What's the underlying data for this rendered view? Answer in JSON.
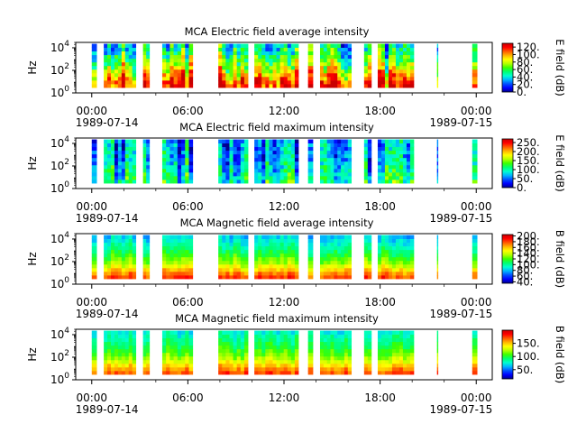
{
  "figure": {
    "colormap": [
      "#00008b",
      "#0000ff",
      "#0050ff",
      "#00b4ff",
      "#00ffd0",
      "#00ff6e",
      "#3cff00",
      "#b4ff00",
      "#ffff00",
      "#ffb400",
      "#ff5a00",
      "#ff0000",
      "#c80000"
    ]
  },
  "time_axis": {
    "start": "1989-07-14 00:00",
    "end": "1989-07-15 00:00",
    "tick_labels": [
      "00:00",
      "06:00",
      "12:00",
      "18:00",
      "00:00"
    ],
    "tick_hours": [
      0,
      6,
      12,
      18,
      24
    ],
    "minor_tick_hours": [
      2,
      4,
      8,
      10,
      14,
      16,
      20,
      22
    ],
    "date_labels": [
      "1989-07-14",
      "1989-07-15"
    ],
    "xlim_hours": [
      -1,
      25
    ]
  },
  "frequency_axis": {
    "label": "Hz",
    "scale": "log",
    "ylim": [
      1,
      30000
    ],
    "ticks": [
      {
        "value": 1,
        "base": "10",
        "exp": "0"
      },
      {
        "value": 100,
        "base": "10",
        "exp": "2"
      },
      {
        "value": 10000,
        "base": "10",
        "exp": "4"
      }
    ]
  },
  "chart_data": [
    {
      "type": "heatmap",
      "title": "MCA  Electric field average intensity",
      "ylabel": "Hz",
      "colorbar": {
        "label": "E field (dB)",
        "range": [
          0,
          130
        ],
        "ticks": [
          "0.",
          "20.",
          "40.",
          "60.",
          "80.",
          "100.",
          "120."
        ],
        "tick_values": [
          0,
          20,
          40,
          60,
          80,
          100,
          120
        ]
      },
      "x_unit": "hours since 1989-07-14 00:00",
      "data_segments_hours": [
        [
          0.0,
          0.3
        ],
        [
          0.75,
          2.75
        ],
        [
          3.2,
          3.6
        ],
        [
          4.4,
          6.3
        ],
        [
          7.9,
          9.75
        ],
        [
          10.15,
          12.9
        ],
        [
          13.5,
          13.8
        ],
        [
          14.25,
          16.2
        ],
        [
          17.0,
          17.45
        ],
        [
          17.85,
          20.1
        ],
        [
          21.55,
          21.6
        ],
        [
          23.75,
          24.05
        ]
      ],
      "level_profile": [
        0.88,
        0.84,
        0.78,
        0.71,
        0.64,
        0.57,
        0.51,
        0.46,
        0.41,
        0.36,
        0.33,
        0.3
      ],
      "variability": 0.45,
      "seed": 11
    },
    {
      "type": "heatmap",
      "title": "MCA  Electric field maximum intensity",
      "ylabel": "Hz",
      "colorbar": {
        "label": "E field (dB)",
        "range": [
          0,
          270
        ],
        "ticks": [
          "0.",
          "50.",
          "100.",
          "150.",
          "200.",
          "250."
        ],
        "tick_values": [
          0,
          50,
          100,
          150,
          200,
          250
        ]
      },
      "x_unit": "hours since 1989-07-14 00:00",
      "data_segments_hours": [
        [
          0.0,
          0.3
        ],
        [
          0.75,
          2.75
        ],
        [
          3.2,
          3.6
        ],
        [
          4.4,
          6.3
        ],
        [
          7.9,
          9.75
        ],
        [
          10.15,
          12.9
        ],
        [
          13.5,
          13.8
        ],
        [
          14.25,
          16.2
        ],
        [
          17.0,
          17.45
        ],
        [
          17.85,
          20.1
        ],
        [
          21.55,
          21.6
        ],
        [
          23.75,
          24.05
        ]
      ],
      "level_profile": [
        0.38,
        0.36,
        0.34,
        0.32,
        0.3,
        0.28,
        0.26,
        0.25,
        0.24,
        0.23,
        0.22,
        0.22
      ],
      "variability": 0.35,
      "seed": 23
    },
    {
      "type": "heatmap",
      "title": "MCA  Magnetic field average intensity",
      "ylabel": "Hz",
      "colorbar": {
        "label": "B field (dB)",
        "range": [
          35,
          205
        ],
        "ticks": [
          "40.",
          "60.",
          "80.",
          "100.",
          "120.",
          "140.",
          "160.",
          "180.",
          "200."
        ],
        "tick_values": [
          40,
          60,
          80,
          100,
          120,
          140,
          160,
          180,
          200
        ]
      },
      "x_unit": "hours since 1989-07-14 00:00",
      "data_segments_hours": [
        [
          0.0,
          0.3
        ],
        [
          0.75,
          2.75
        ],
        [
          3.2,
          3.6
        ],
        [
          4.4,
          6.3
        ],
        [
          7.9,
          9.75
        ],
        [
          10.15,
          12.9
        ],
        [
          13.5,
          13.8
        ],
        [
          14.25,
          16.2
        ],
        [
          17.0,
          17.45
        ],
        [
          17.85,
          20.1
        ],
        [
          21.55,
          21.6
        ],
        [
          23.75,
          24.05
        ]
      ],
      "level_profile": [
        0.86,
        0.8,
        0.72,
        0.64,
        0.57,
        0.52,
        0.47,
        0.43,
        0.39,
        0.36,
        0.32,
        0.28
      ],
      "variability": 0.12,
      "seed": 37
    },
    {
      "type": "heatmap",
      "title": "MCA  Magnetic field maximum intensity",
      "ylabel": "Hz",
      "colorbar": {
        "label": "B field (dB)",
        "range": [
          15,
          200
        ],
        "ticks": [
          "50.",
          "100.",
          "150."
        ],
        "tick_values": [
          50,
          100,
          150
        ]
      },
      "x_unit": "hours since 1989-07-14 00:00",
      "data_segments_hours": [
        [
          0.0,
          0.3
        ],
        [
          0.75,
          2.75
        ],
        [
          3.2,
          3.6
        ],
        [
          4.4,
          6.3
        ],
        [
          7.9,
          9.75
        ],
        [
          10.15,
          12.9
        ],
        [
          13.5,
          13.8
        ],
        [
          14.25,
          16.2
        ],
        [
          17.0,
          17.45
        ],
        [
          17.85,
          20.1
        ],
        [
          21.55,
          21.6
        ],
        [
          23.75,
          24.05
        ]
      ],
      "level_profile": [
        0.84,
        0.78,
        0.71,
        0.64,
        0.58,
        0.53,
        0.49,
        0.45,
        0.42,
        0.39,
        0.36,
        0.33
      ],
      "variability": 0.12,
      "seed": 53
    }
  ]
}
